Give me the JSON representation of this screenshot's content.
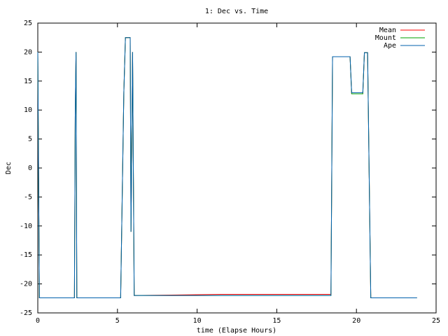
{
  "chart_data": {
    "type": "line",
    "title": "1: Dec vs. Time",
    "x_label": "time (Elapse Hours)",
    "y_label": "Dec",
    "x": [
      0,
      0.1,
      2.3,
      2.35,
      2.4,
      2.45,
      5.2,
      5.4,
      5.5,
      5.8,
      5.85,
      5.95,
      6.05,
      11.5,
      18.4,
      18.5,
      19.6,
      19.7,
      20.4,
      20.5,
      20.7,
      20.9,
      21.8,
      23.8
    ],
    "series": [
      {
        "name": "Mean",
        "color": "#ff0000",
        "values": [
          20,
          -22.4,
          -22.4,
          9,
          20,
          -22.4,
          -22.4,
          13,
          22.5,
          22.5,
          -11,
          20,
          -22,
          -21.8,
          -21.8,
          19.2,
          19.2,
          12.8,
          12.8,
          19.9,
          19.9,
          -22.4,
          -22.4,
          -22.4
        ]
      },
      {
        "name": "Mount",
        "color": "#00a000",
        "values": [
          20,
          -22.4,
          -22.4,
          9,
          20,
          -22.4,
          -22.4,
          13,
          22.5,
          22.5,
          -11,
          20,
          -22,
          -22,
          -22,
          19.2,
          19.2,
          12.8,
          12.8,
          19.9,
          19.9,
          -22.4,
          -22.4,
          -22.4
        ]
      },
      {
        "name": "Ape",
        "color": "#0060ad",
        "values": [
          20,
          -22.4,
          -22.4,
          9,
          20,
          -22.4,
          -22.4,
          13,
          22.5,
          22.5,
          -11,
          20,
          -22,
          -22,
          -22,
          19.2,
          19.2,
          13,
          13,
          19.9,
          19.9,
          -22.4,
          -22.4,
          -22.4
        ]
      }
    ],
    "xlim": [
      0,
      25
    ],
    "xticks": [
      0,
      5,
      10,
      15,
      20,
      25
    ],
    "ylim": [
      -25,
      25
    ],
    "yticks": [
      -25,
      -20,
      -15,
      -10,
      -5,
      0,
      5,
      10,
      15,
      20,
      25
    ],
    "legend": "top-right"
  }
}
